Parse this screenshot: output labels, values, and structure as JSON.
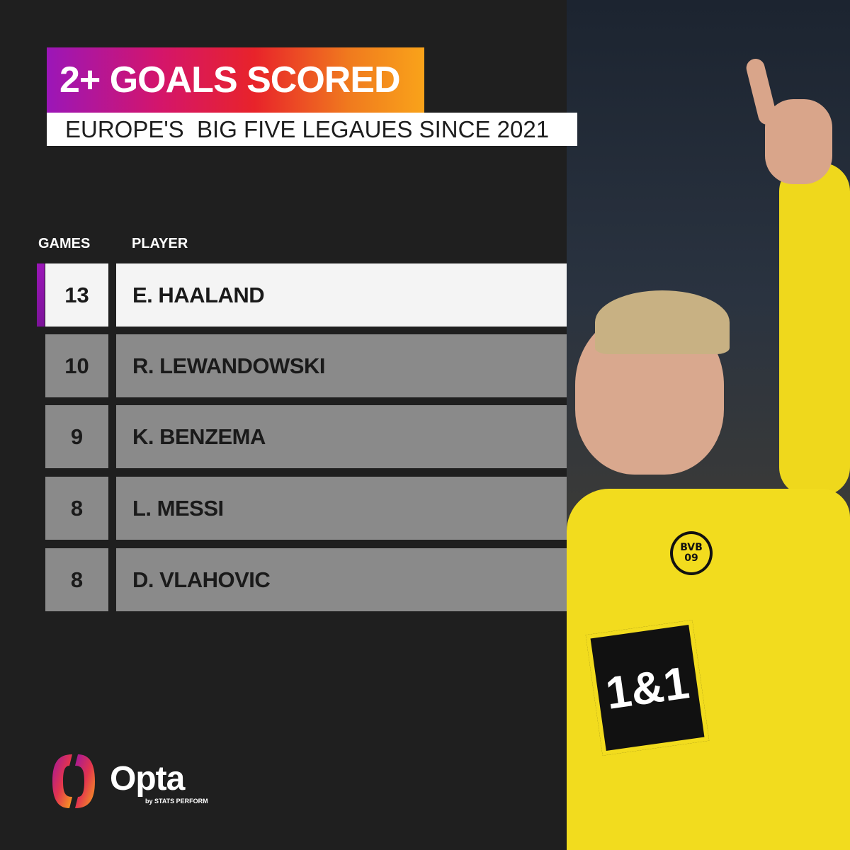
{
  "header": {
    "title": "2+ GOALS SCORED",
    "subtitle": "EUROPE'S  BIG FIVE LEGAUES SINCE 2021"
  },
  "table": {
    "columns": [
      "GAMES",
      "PLAYER"
    ],
    "rows": [
      {
        "games": "13",
        "player": "E. HAALAND"
      },
      {
        "games": "10",
        "player": "R. LEWANDOWSKI"
      },
      {
        "games": "9",
        "player": "K. BENZEMA"
      },
      {
        "games": "8",
        "player": "L. MESSI"
      },
      {
        "games": "8",
        "player": "D. VLAHOVIC"
      }
    ]
  },
  "photo": {
    "crest_text": "BVB 09",
    "sponsor_text": "1&1"
  },
  "brand": {
    "name": "Opta",
    "tagline": "by STATS PERFORM"
  },
  "colors": {
    "accent_purple": "#9b16b8",
    "gradient_red": "#e8232a",
    "gradient_orange": "#f9a31a",
    "highlight_row": "#f4f4f4",
    "row": "#8a8a8a",
    "background": "#1f1f1f"
  },
  "chart_data": {
    "type": "table",
    "title": "2+ GOALS SCORED",
    "subtitle": "EUROPE'S  BIG FIVE LEGAUES SINCE 2021",
    "columns": [
      "GAMES",
      "PLAYER"
    ],
    "categories": [
      "E. HAALAND",
      "R. LEWANDOWSKI",
      "K. BENZEMA",
      "L. MESSI",
      "D. VLAHOVIC"
    ],
    "values": [
      13,
      10,
      9,
      8,
      8
    ]
  }
}
